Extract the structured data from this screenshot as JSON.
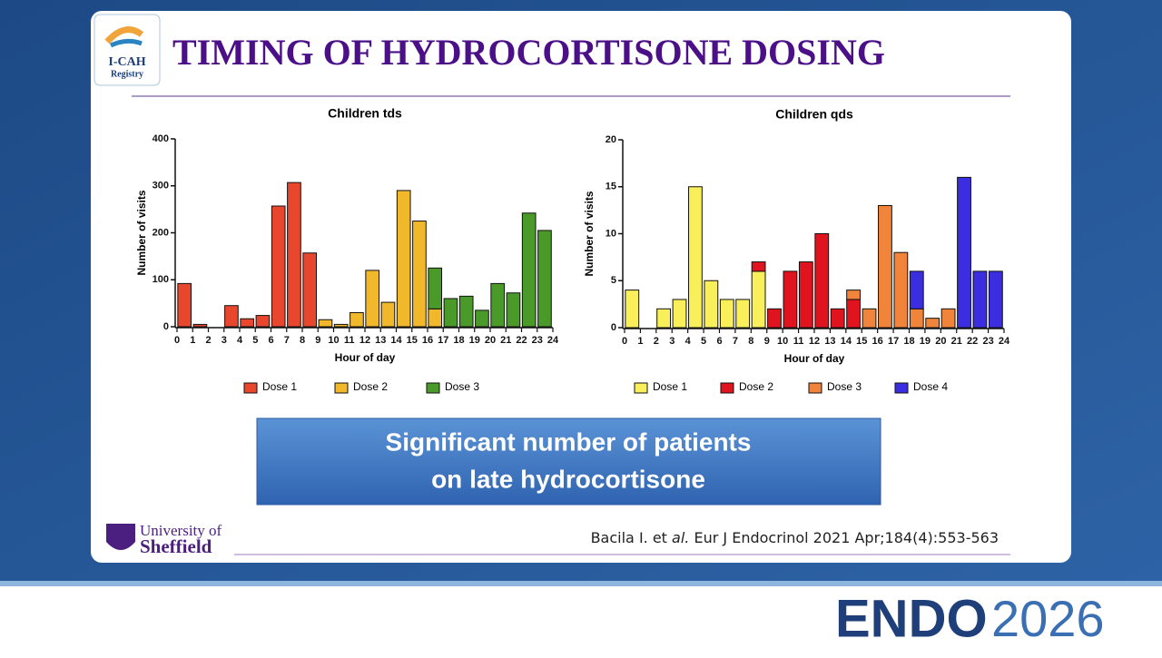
{
  "slide": {
    "title": "TIMING OF HYDROCORTISONE DOSING",
    "logo": {
      "name": "I-CAH",
      "sub": "Registry"
    },
    "banner": [
      "Significant number of patients",
      "on late hydrocortisone"
    ],
    "university": {
      "line1": "University of",
      "line2": "Sheffield"
    },
    "citation": {
      "authors": "Bacila I. et",
      "etal": "al.",
      "journal": "Eur J Endocrinol 2021 Apr;184(4):553-563"
    },
    "footer": {
      "brand": "ENDO",
      "year": "2026"
    }
  },
  "chart_data": [
    {
      "type": "bar",
      "stacked": true,
      "title": "Children tds",
      "x_label": "Hour of day",
      "y_label": "Number of visits",
      "x": [
        0,
        1,
        2,
        3,
        4,
        5,
        6,
        7,
        8,
        9,
        10,
        11,
        12,
        13,
        14,
        15,
        16,
        17,
        18,
        19,
        20,
        21,
        22,
        23
      ],
      "xlim": [
        0,
        24
      ],
      "xticks": [
        0,
        1,
        2,
        3,
        4,
        5,
        6,
        7,
        8,
        9,
        10,
        11,
        12,
        13,
        14,
        15,
        16,
        17,
        18,
        19,
        20,
        21,
        22,
        23,
        24
      ],
      "ylim": [
        0,
        400
      ],
      "yticks": [
        0,
        100,
        200,
        300,
        400
      ],
      "series": [
        {
          "name": "Dose 1",
          "color": "#e8472e",
          "values": [
            92,
            5,
            null,
            45,
            17,
            24,
            257,
            307,
            157,
            null,
            null,
            null,
            null,
            null,
            null,
            null,
            null,
            null,
            null,
            null,
            null,
            null,
            null,
            null
          ]
        },
        {
          "name": "Dose 2",
          "color": "#f2b82b",
          "values": [
            null,
            null,
            null,
            null,
            null,
            null,
            null,
            null,
            null,
            15,
            5,
            30,
            120,
            52,
            290,
            225,
            38,
            null,
            null,
            null,
            null,
            null,
            null,
            null
          ]
        },
        {
          "name": "Dose 3",
          "color": "#4a9a2a",
          "values": [
            null,
            null,
            null,
            null,
            null,
            null,
            null,
            null,
            null,
            null,
            null,
            null,
            null,
            null,
            null,
            null,
            87,
            60,
            65,
            35,
            92,
            72,
            242,
            205
          ]
        }
      ]
    },
    {
      "type": "bar",
      "stacked": true,
      "title": "Children qds",
      "x_label": "Hour of day",
      "y_label": "Number of visits",
      "x": [
        0,
        1,
        2,
        3,
        4,
        5,
        6,
        7,
        8,
        9,
        10,
        11,
        12,
        13,
        14,
        15,
        16,
        17,
        18,
        19,
        20,
        21,
        22,
        23
      ],
      "xlim": [
        0,
        24
      ],
      "xticks": [
        0,
        1,
        2,
        3,
        4,
        5,
        6,
        7,
        8,
        9,
        10,
        11,
        12,
        13,
        14,
        15,
        16,
        17,
        18,
        19,
        20,
        21,
        22,
        23,
        24
      ],
      "ylim": [
        0,
        20
      ],
      "yticks": [
        0,
        5,
        10,
        15,
        20
      ],
      "series": [
        {
          "name": "Dose 1",
          "color": "#f8ef5a",
          "values": [
            4,
            null,
            2,
            3,
            15,
            5,
            3,
            3,
            6,
            null,
            null,
            null,
            null,
            null,
            null,
            null,
            null,
            null,
            null,
            null,
            null,
            null,
            null,
            null
          ]
        },
        {
          "name": "Dose 2",
          "color": "#e0141e",
          "values": [
            null,
            null,
            null,
            null,
            null,
            null,
            null,
            null,
            1,
            2,
            6,
            7,
            10,
            2,
            3,
            null,
            null,
            null,
            null,
            null,
            null,
            null,
            null,
            null
          ]
        },
        {
          "name": "Dose 3",
          "color": "#f0843a",
          "values": [
            null,
            null,
            null,
            null,
            null,
            null,
            null,
            null,
            null,
            null,
            null,
            null,
            null,
            null,
            1,
            2,
            13,
            8,
            2,
            1,
            2,
            null,
            null,
            null
          ]
        },
        {
          "name": "Dose 4",
          "color": "#3b2ee0",
          "values": [
            null,
            null,
            null,
            null,
            null,
            null,
            null,
            null,
            null,
            null,
            null,
            null,
            null,
            null,
            null,
            null,
            null,
            null,
            4,
            null,
            null,
            16,
            6,
            6
          ]
        }
      ]
    }
  ]
}
